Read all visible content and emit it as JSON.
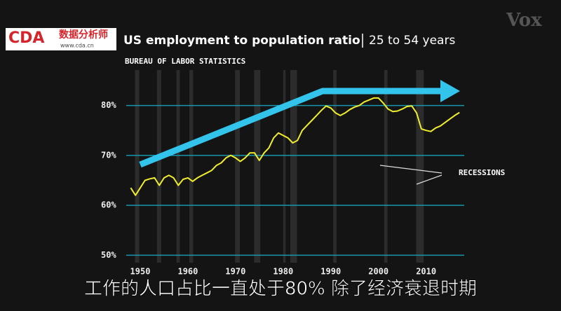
{
  "chart_data": {
    "type": "line",
    "title": "US employment to population ratio",
    "title_suffix": "25 to 54 years",
    "source": "BUREAU OF LABOR STATISTICS",
    "annotation": "RECESSIONS",
    "logo": "CDA",
    "logo_cn": "数据分析师",
    "logo_url": "www.cda.cn",
    "watermark": "Vox",
    "caption": "工作的人口占比一直处于80% 除了经济衰退时期",
    "x": [
      1948,
      1949,
      1950,
      1951,
      1952,
      1953,
      1954,
      1955,
      1956,
      1957,
      1958,
      1959,
      1960,
      1961,
      1962,
      1963,
      1964,
      1965,
      1966,
      1967,
      1968,
      1969,
      1970,
      1971,
      1972,
      1973,
      1974,
      1975,
      1976,
      1977,
      1978,
      1979,
      1980,
      1981,
      1982,
      1983,
      1984,
      1985,
      1986,
      1987,
      1988,
      1989,
      1990,
      1991,
      1992,
      1993,
      1994,
      1995,
      1996,
      1997,
      1998,
      1999,
      2000,
      2001,
      2002,
      2003,
      2004,
      2005,
      2006,
      2007,
      2008,
      2009,
      2010,
      2011,
      2012,
      2013,
      2014,
      2015,
      2016,
      2017
    ],
    "values": [
      63.5,
      62,
      63.5,
      65,
      65.3,
      65.5,
      64,
      65.5,
      66,
      65.5,
      64,
      65.2,
      65.5,
      64.8,
      65.5,
      66,
      66.5,
      67,
      68,
      68.5,
      69.5,
      70,
      69.5,
      68.8,
      69.5,
      70.5,
      70.5,
      69,
      70.5,
      71.5,
      73.5,
      74.5,
      74,
      73.5,
      72.5,
      73,
      75,
      76,
      77,
      78,
      79,
      79.9,
      79.5,
      78.5,
      78,
      78.5,
      79.2,
      79.7,
      80,
      80.7,
      81.1,
      81.5,
      81.5,
      80.5,
      79.3,
      78.8,
      78.9,
      79.3,
      79.8,
      79.9,
      78.5,
      75.3,
      75,
      74.8,
      75.5,
      75.9,
      76.6,
      77.3,
      78,
      78.6
    ],
    "line_color": "#f0ee2c",
    "recessions": [
      [
        1948.9,
        1949.8
      ],
      [
        1953.5,
        1954.4
      ],
      [
        1957.6,
        1958.3
      ],
      [
        1960.3,
        1961.1
      ],
      [
        1969.9,
        1970.9
      ],
      [
        1973.9,
        1975.2
      ],
      [
        1980,
        1980.5
      ],
      [
        1981.5,
        1982.9
      ],
      [
        1990.5,
        1991.2
      ],
      [
        2001.2,
        2001.9
      ],
      [
        2007.9,
        2009.5
      ]
    ],
    "xlim": [
      1947.5,
      2018
    ],
    "xticks": [
      1950,
      1960,
      1970,
      1980,
      1990,
      2000,
      2010
    ],
    "ylim": [
      48.5,
      85
    ],
    "yticks": [
      {
        "value": 50,
        "label": "50%"
      },
      {
        "value": 60,
        "label": "60%"
      },
      {
        "value": 70,
        "label": "70%"
      },
      {
        "value": 80,
        "label": "80%"
      }
    ],
    "grid": true
  }
}
